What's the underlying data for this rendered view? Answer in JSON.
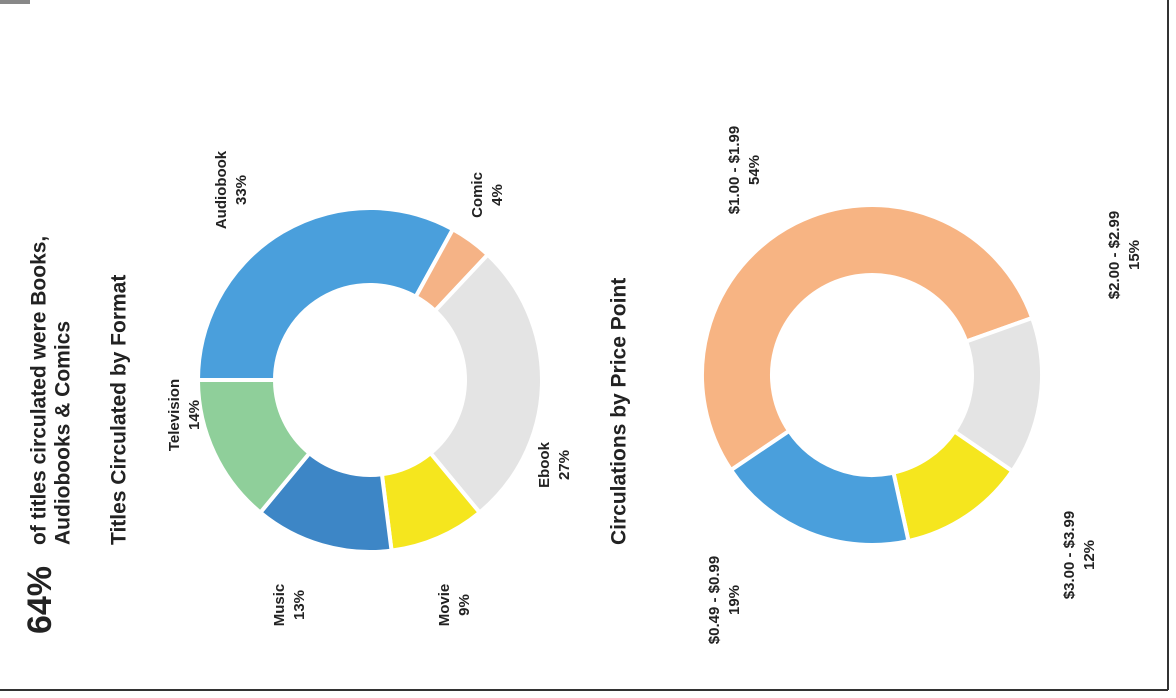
{
  "headline": {
    "value": "64%",
    "text": [
      "of titles circulated were Books,",
      "Audiobooks & Comics"
    ]
  },
  "chart_data": [
    {
      "type": "pie",
      "title": "Titles Circulated by Format",
      "categories": [
        "Audiobook",
        "Comic",
        "Ebook",
        "Movie",
        "Music",
        "Television"
      ],
      "values": [
        33,
        4,
        27,
        9,
        13,
        14
      ],
      "value_labels": [
        "33%",
        "4%",
        "27%",
        "9%",
        "13%",
        "14%"
      ],
      "colors": [
        "#4a9fdc",
        "#f5b386",
        "#e4e4e4",
        "#f5e61e",
        "#3d86c6",
        "#8fcf9a"
      ]
    },
    {
      "type": "pie",
      "title": "Circulations by Price Point",
      "categories": [
        "$1.00 - $1.99",
        "$2.00 - $2.99",
        "$3.00 - $3.99",
        "$0.49 - $0.99"
      ],
      "values": [
        54,
        15,
        12,
        19
      ],
      "value_labels": [
        "54%",
        "15%",
        "12%",
        "19%"
      ],
      "colors": [
        "#f7b483",
        "#e4e4e4",
        "#f5e61e",
        "#4a9fdc"
      ]
    }
  ]
}
